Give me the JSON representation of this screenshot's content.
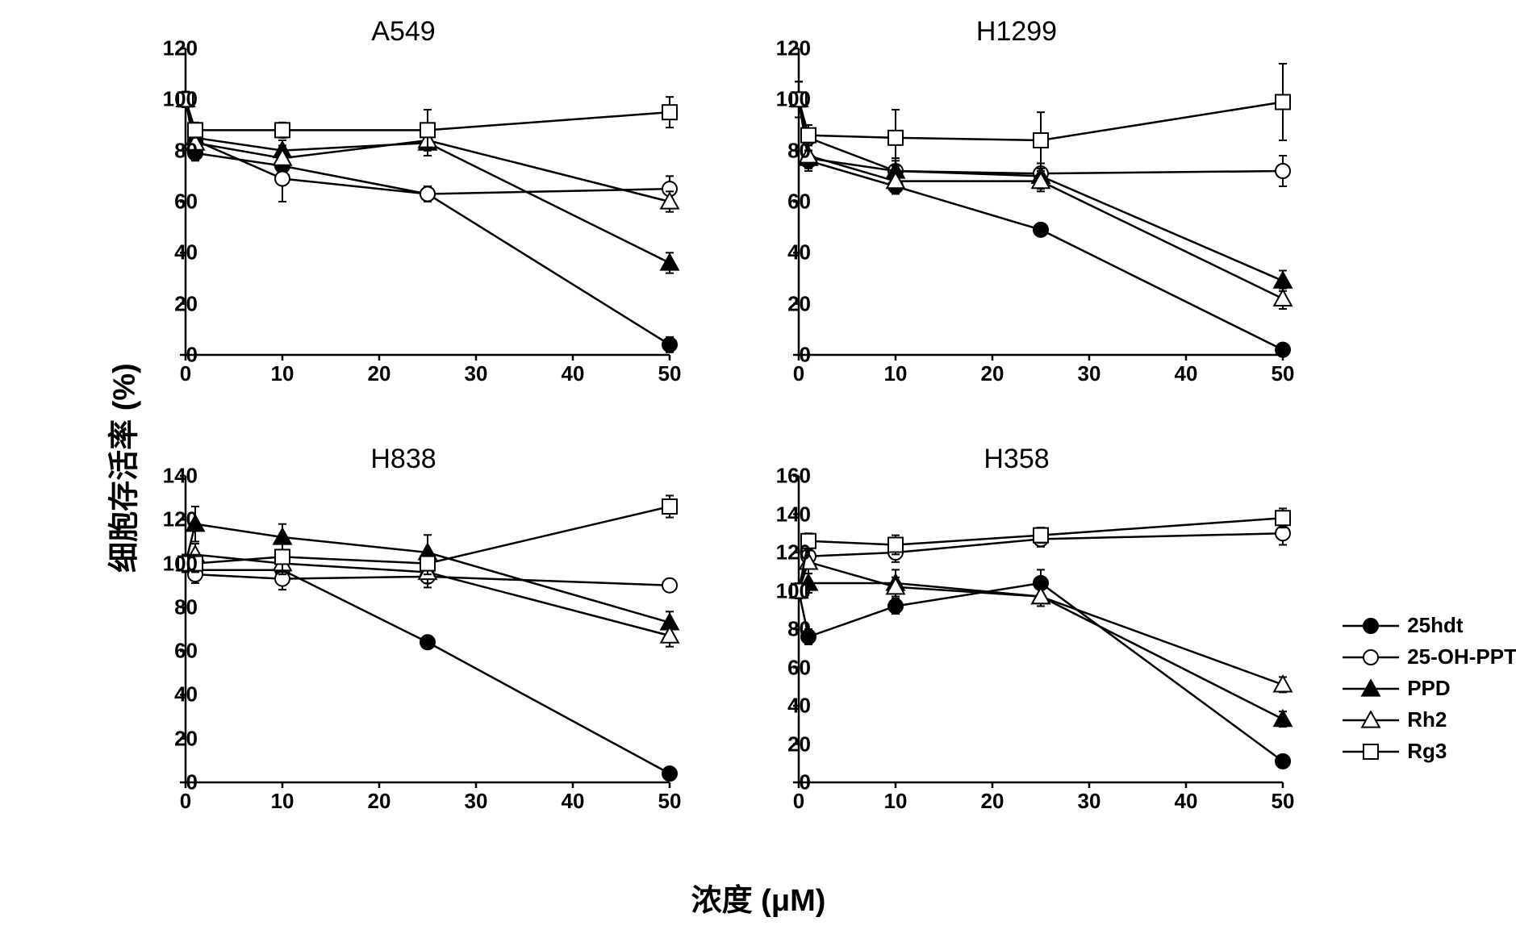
{
  "axis_labels": {
    "y": "细胞存活率 (%)",
    "x": "浓度 (μM)"
  },
  "colors": {
    "line": "#000000",
    "background": "#ffffff",
    "text": "#000000"
  },
  "line_width": 2.5,
  "marker_size": 9,
  "tick_fontsize": 26,
  "title_fontsize": 34,
  "axis_label_fontsize": 38,
  "legend": [
    {
      "label": "25hdt",
      "marker": "circle-filled"
    },
    {
      "label": "25-OH-PPT",
      "marker": "circle-open"
    },
    {
      "label": "PPD",
      "marker": "triangle-filled"
    },
    {
      "label": "Rh2",
      "marker": "triangle-open"
    },
    {
      "label": "Rg3",
      "marker": "square-open"
    }
  ],
  "panels": [
    {
      "title": "A549",
      "xlim": [
        0,
        50
      ],
      "xticks": [
        0,
        10,
        20,
        30,
        40,
        50
      ],
      "ylim": [
        0,
        120
      ],
      "yticks": [
        0,
        20,
        40,
        60,
        80,
        100,
        120
      ],
      "series": [
        {
          "marker": "circle-filled",
          "x": [
            0,
            1,
            10,
            25,
            50
          ],
          "y": [
            100,
            79,
            74,
            63,
            4
          ],
          "err": [
            3,
            3,
            4,
            2,
            3
          ]
        },
        {
          "marker": "circle-open",
          "x": [
            0,
            1,
            10,
            25,
            50
          ],
          "y": [
            100,
            84,
            69,
            63,
            65
          ],
          "err": [
            3,
            4,
            9,
            3,
            5
          ]
        },
        {
          "marker": "triangle-filled",
          "x": [
            0,
            1,
            10,
            25,
            50
          ],
          "y": [
            100,
            85,
            80,
            83,
            36
          ],
          "err": [
            3,
            5,
            4,
            5,
            4
          ]
        },
        {
          "marker": "triangle-open",
          "x": [
            0,
            1,
            10,
            25,
            50
          ],
          "y": [
            100,
            83,
            77,
            84,
            60
          ],
          "err": [
            3,
            4,
            5,
            4,
            4
          ]
        },
        {
          "marker": "square-open",
          "x": [
            0,
            1,
            10,
            25,
            50
          ],
          "y": [
            100,
            88,
            88,
            88,
            95
          ],
          "err": [
            3,
            3,
            3,
            8,
            6
          ]
        }
      ]
    },
    {
      "title": "H1299",
      "xlim": [
        0,
        50
      ],
      "xticks": [
        0,
        10,
        20,
        30,
        40,
        50
      ],
      "ylim": [
        0,
        120
      ],
      "yticks": [
        0,
        20,
        40,
        60,
        80,
        100,
        120
      ],
      "series": [
        {
          "marker": "circle-filled",
          "x": [
            0,
            1,
            10,
            25,
            50
          ],
          "y": [
            100,
            76,
            66,
            49,
            2
          ],
          "err": [
            7,
            4,
            3,
            2,
            2
          ]
        },
        {
          "marker": "circle-open",
          "x": [
            0,
            1,
            10,
            25,
            50
          ],
          "y": [
            100,
            85,
            72,
            71,
            72
          ],
          "err": [
            7,
            5,
            4,
            4,
            6
          ]
        },
        {
          "marker": "triangle-filled",
          "x": [
            0,
            1,
            10,
            25,
            50
          ],
          "y": [
            100,
            77,
            72,
            70,
            29
          ],
          "err": [
            7,
            5,
            5,
            5,
            4
          ]
        },
        {
          "marker": "triangle-open",
          "x": [
            0,
            1,
            10,
            25,
            50
          ],
          "y": [
            100,
            78,
            68,
            68,
            22
          ],
          "err": [
            7,
            5,
            4,
            4,
            4
          ]
        },
        {
          "marker": "square-open",
          "x": [
            0,
            1,
            10,
            25,
            50
          ],
          "y": [
            100,
            86,
            85,
            84,
            99
          ],
          "err": [
            7,
            4,
            11,
            11,
            15
          ]
        }
      ]
    },
    {
      "title": "H838",
      "xlim": [
        0,
        50
      ],
      "xticks": [
        0,
        10,
        20,
        30,
        40,
        50
      ],
      "ylim": [
        0,
        140
      ],
      "yticks": [
        0,
        20,
        40,
        60,
        80,
        100,
        120,
        140
      ],
      "series": [
        {
          "marker": "circle-filled",
          "x": [
            0,
            1,
            10,
            25,
            50
          ],
          "y": [
            100,
            97,
            97,
            64,
            4
          ],
          "err": [
            4,
            4,
            4,
            2,
            2
          ]
        },
        {
          "marker": "circle-open",
          "x": [
            0,
            1,
            10,
            25,
            50
          ],
          "y": [
            100,
            95,
            93,
            94,
            90
          ],
          "err": [
            4,
            4,
            5,
            5,
            3
          ]
        },
        {
          "marker": "triangle-filled",
          "x": [
            0,
            1,
            10,
            25,
            50
          ],
          "y": [
            100,
            118,
            112,
            105,
            73
          ],
          "err": [
            4,
            8,
            6,
            8,
            5
          ]
        },
        {
          "marker": "triangle-open",
          "x": [
            0,
            1,
            10,
            25,
            50
          ],
          "y": [
            100,
            104,
            100,
            96,
            67
          ],
          "err": [
            4,
            5,
            5,
            5,
            5
          ]
        },
        {
          "marker": "square-open",
          "x": [
            0,
            1,
            10,
            25,
            50
          ],
          "y": [
            100,
            100,
            103,
            100,
            126
          ],
          "err": [
            4,
            4,
            7,
            5,
            5
          ]
        }
      ]
    },
    {
      "title": "H358",
      "xlim": [
        0,
        50
      ],
      "xticks": [
        0,
        10,
        20,
        30,
        40,
        50
      ],
      "ylim": [
        0,
        160
      ],
      "yticks": [
        0,
        20,
        40,
        60,
        80,
        100,
        120,
        140,
        160
      ],
      "series": [
        {
          "marker": "circle-filled",
          "x": [
            0,
            1,
            10,
            25,
            50
          ],
          "y": [
            100,
            76,
            92,
            104,
            11
          ],
          "err": [
            4,
            4,
            4,
            7,
            3
          ]
        },
        {
          "marker": "circle-open",
          "x": [
            0,
            1,
            10,
            25,
            50
          ],
          "y": [
            100,
            118,
            120,
            127,
            130
          ],
          "err": [
            4,
            5,
            5,
            4,
            6
          ]
        },
        {
          "marker": "triangle-filled",
          "x": [
            0,
            1,
            10,
            25,
            50
          ],
          "y": [
            100,
            104,
            104,
            97,
            33
          ],
          "err": [
            4,
            5,
            7,
            5,
            4
          ]
        },
        {
          "marker": "triangle-open",
          "x": [
            0,
            1,
            10,
            25,
            50
          ],
          "y": [
            100,
            115,
            102,
            97,
            51
          ],
          "err": [
            4,
            6,
            5,
            5,
            4
          ]
        },
        {
          "marker": "square-open",
          "x": [
            0,
            1,
            10,
            25,
            50
          ],
          "y": [
            100,
            126,
            124,
            129,
            138
          ],
          "err": [
            4,
            4,
            5,
            4,
            5
          ]
        }
      ]
    }
  ]
}
